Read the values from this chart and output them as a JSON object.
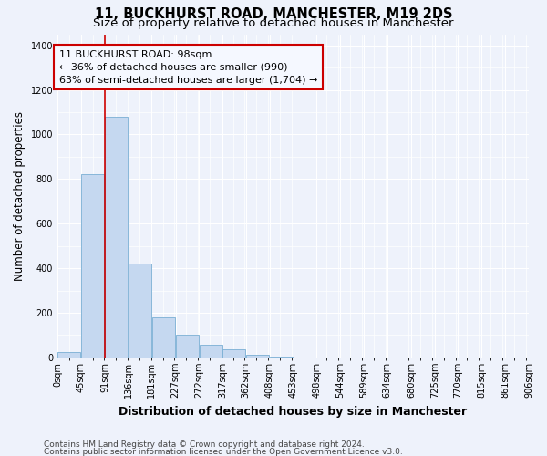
{
  "title_line1": "11, BUCKHURST ROAD, MANCHESTER, M19 2DS",
  "title_line2": "Size of property relative to detached houses in Manchester",
  "xlabel": "Distribution of detached houses by size in Manchester",
  "ylabel": "Number of detached properties",
  "bar_values": [
    25,
    820,
    1080,
    420,
    178,
    100,
    55,
    35,
    10,
    2,
    1,
    0,
    0,
    0,
    0,
    0,
    0,
    0,
    0,
    0
  ],
  "bin_edges": [
    0,
    45,
    91,
    136,
    181,
    227,
    272,
    317,
    362,
    408,
    453,
    498,
    544,
    589,
    634,
    680,
    725,
    770,
    815,
    861,
    906
  ],
  "tick_labels": [
    "0sqm",
    "45sqm",
    "91sqm",
    "136sqm",
    "181sqm",
    "227sqm",
    "272sqm",
    "317sqm",
    "362sqm",
    "408sqm",
    "453sqm",
    "498sqm",
    "544sqm",
    "589sqm",
    "634sqm",
    "680sqm",
    "725sqm",
    "770sqm",
    "815sqm",
    "861sqm",
    "906sqm"
  ],
  "bar_color": "#c5d8f0",
  "bar_edgecolor": "#7aafd4",
  "property_line_x": 91,
  "property_line_color": "#cc0000",
  "annotation_text": "11 BUCKHURST ROAD: 98sqm\n← 36% of detached houses are smaller (990)\n63% of semi-detached houses are larger (1,704) →",
  "annotation_box_facecolor": "#f5f8ff",
  "annotation_box_edgecolor": "#cc0000",
  "ylim": [
    0,
    1450
  ],
  "yticks": [
    0,
    200,
    400,
    600,
    800,
    1000,
    1200,
    1400
  ],
  "footer_line1": "Contains HM Land Registry data © Crown copyright and database right 2024.",
  "footer_line2": "Contains public sector information licensed under the Open Government Licence v3.0.",
  "background_color": "#eef2fb",
  "grid_color": "#ffffff",
  "title_fontsize": 10.5,
  "subtitle_fontsize": 9.5,
  "tick_fontsize": 7,
  "ylabel_fontsize": 8.5,
  "xlabel_fontsize": 9,
  "annotation_fontsize": 8,
  "footer_fontsize": 6.5
}
